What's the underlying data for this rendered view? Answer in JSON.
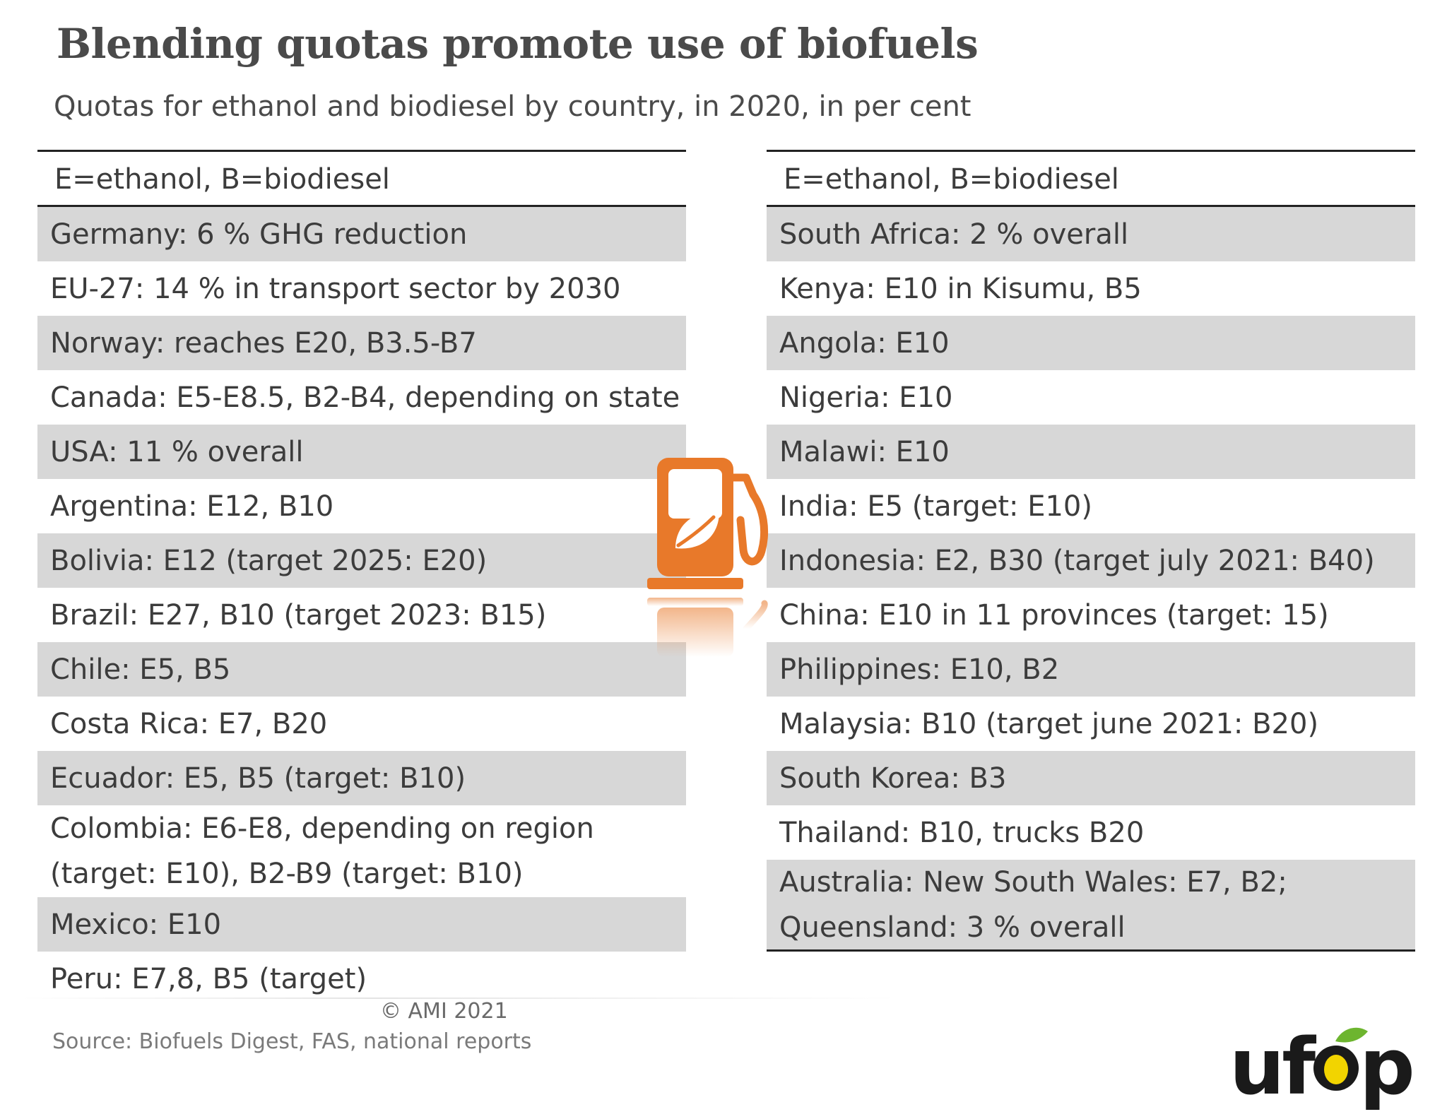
{
  "title": "Blending quotas promote use of biofuels",
  "subtitle": "Quotas for ethanol and biodiesel by country, in 2020, in per cent",
  "legend_note_left": "E=ethanol, B=biodiesel",
  "legend_note_right": "E=ethanol, B=biodiesel",
  "left_rows": [
    "Germany: 6 % GHG reduction",
    "EU-27: 14 % in transport sector by 2030",
    "Norway: reaches E20, B3.5-B7",
    "Canada: E5-E8.5, B2-B4, depending on state",
    "USA: 11 % overall",
    "Argentina: E12, B10",
    "Bolivia: E12 (target 2025: E20)",
    "Brazil: E27, B10 (target 2023: B15)",
    "Chile: E5, B5",
    "Costa Rica: E7, B20",
    "Ecuador: E5, B5 (target: B10)",
    "Colombia: E6-E8, depending on region (target: E10), B2-B9 (target: B10)",
    "Mexico: E10",
    "Peru: E7,8, B5 (target)"
  ],
  "right_rows": [
    "South Africa: 2 % overall",
    "Kenya: E10 in Kisumu, B5",
    "Angola: E10",
    "Nigeria: E10",
    "Malawi: E10",
    "India: E5 (target: E10)",
    "Indonesia: E2, B30 (target july 2021: B40)",
    "China: E10 in 11 provinces (target: 15)",
    "Philippines: E10, B2",
    "Malaysia: B10 (target june 2021: B20)",
    "South Korea: B3",
    "Thailand: B10, trucks B20",
    "Australia: New South Wales: E7, B2; Queensland: 3 % overall"
  ],
  "copyright": "© AMI 2021",
  "source": "Source: Biofuels Digest, FAS, national reports",
  "logo_text": "ufop",
  "icon": "fuel-pump-leaf-icon",
  "colors": {
    "row_shade": "#d7d7d7",
    "pump_orange": "#e8792a",
    "logo_dark": "#1a1a1a",
    "logo_yellow": "#f2d400",
    "logo_green": "#6db52f"
  },
  "chart_data": {
    "type": "table",
    "title": "Blending quotas promote use of biofuels",
    "subtitle": "Quotas for ethanol and biodiesel by country, in 2020, in per cent",
    "columns": [
      "E=ethanol, B=biodiesel",
      "E=ethanol, B=biodiesel"
    ],
    "rows_left": [
      "Germany: 6 % GHG reduction",
      "EU-27: 14 % in transport sector by 2030",
      "Norway: reaches E20, B3.5-B7",
      "Canada: E5-E8.5, B2-B4, depending on state",
      "USA: 11 % overall",
      "Argentina: E12, B10",
      "Bolivia: E12 (target 2025: E20)",
      "Brazil: E27, B10 (target 2023: B15)",
      "Chile: E5, B5",
      "Costa Rica: E7, B20",
      "Ecuador: E5, B5 (target: B10)",
      "Colombia: E6-E8, depending on region (target: E10), B2-B9 (target: B10)",
      "Mexico: E10",
      "Peru: E7,8, B5 (target)"
    ],
    "rows_right": [
      "South Africa: 2 % overall",
      "Kenya: E10 in Kisumu, B5",
      "Angola: E10",
      "Nigeria: E10",
      "Malawi: E10",
      "India: E5 (target: E10)",
      "Indonesia: E2, B30 (target july 2021: B40)",
      "China: E10 in 11 provinces (target: 15)",
      "Philippines: E10, B2",
      "Malaysia: B10 (target june 2021: B20)",
      "South Korea: B3",
      "Thailand: B10, trucks B20",
      "Australia: New South Wales: E7, B2; Queensland: 3 % overall"
    ]
  }
}
